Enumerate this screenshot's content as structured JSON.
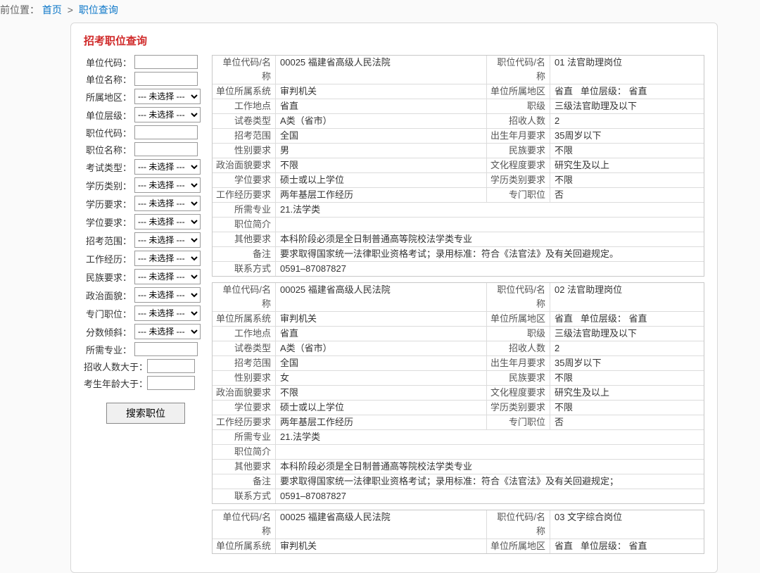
{
  "breadcrumb": {
    "prefix": "前位置：",
    "home": "首页",
    "sep": ">",
    "current": "职位查询"
  },
  "panel_title": "招考职位查询",
  "filters": {
    "unit_code": "单位代码：",
    "unit_name": "单位名称：",
    "area": "所属地区：",
    "unit_level": "单位层级：",
    "job_code": "职位代码：",
    "job_name": "职位名称：",
    "exam_type": "考试类型：",
    "edu_category": "学历类别：",
    "edu_require": "学历要求：",
    "degree_require": "学位要求：",
    "recruit_scope": "招考范围：",
    "work_exp": "工作经历：",
    "ethnicity_req": "民族要求：",
    "politics": "政治面貌：",
    "special_post": "专门职位：",
    "score_pref": "分数倾斜：",
    "required_major": "所需专业：",
    "recruit_gt": "招收人数大于：",
    "age_gt": "考生年龄大于：",
    "placeholder": "--- 未选择 ---",
    "search_btn": "搜索职位"
  },
  "labels": {
    "unit_code_name": "单位代码/名称",
    "job_code_name": "职位代码/名称",
    "unit_system": "单位所属系统",
    "unit_area": "单位所属地区",
    "unit_level": "单位层级：",
    "work_location": "工作地点",
    "job_rank": "职级",
    "paper_type": "试卷类型",
    "recruit_count": "招收人数",
    "recruit_scope": "招考范围",
    "birth_year_req": "出生年月要求",
    "gender_req": "性别要求",
    "ethnicity_req": "民族要求",
    "politics_req": "政治面貌要求",
    "culture_req": "文化程度要求",
    "degree_req": "学位要求",
    "edu_cat_req": "学历类别要求",
    "work_exp_req": "工作经历要求",
    "special_post": "专门职位",
    "required_major": "所需专业",
    "job_desc": "职位简介",
    "other_req": "其他要求",
    "remark": "备注",
    "contact": "联系方式"
  },
  "records": [
    {
      "unit": "00025 福建省高级人民法院",
      "job": "01 法官助理岗位",
      "system": "审判机关",
      "area": "省直",
      "level": "省直",
      "location": "省直",
      "rank": "三级法官助理及以下",
      "paper": "A类（省市）",
      "count": "2",
      "scope": "全国",
      "birth": "35周岁以下",
      "gender": "男",
      "ethnicity": "不限",
      "politics": "不限",
      "culture": "研究生及以上",
      "degree": "硕士或以上学位",
      "edu_cat": "不限",
      "work_exp": "两年基层工作经历",
      "special": "否",
      "major": "21.法学类",
      "desc": "",
      "other": "本科阶段必须是全日制普通高等院校法学类专业",
      "remark": "要求取得国家统一法律职业资格考试；录用标准：符合《法官法》及有关回避规定。",
      "contact": "0591–87087827"
    },
    {
      "unit": "00025 福建省高级人民法院",
      "job": "02 法官助理岗位",
      "system": "审判机关",
      "area": "省直",
      "level": "省直",
      "location": "省直",
      "rank": "三级法官助理及以下",
      "paper": "A类（省市）",
      "count": "2",
      "scope": "全国",
      "birth": "35周岁以下",
      "gender": "女",
      "ethnicity": "不限",
      "politics": "不限",
      "culture": "研究生及以上",
      "degree": "硕士或以上学位",
      "edu_cat": "不限",
      "work_exp": "两年基层工作经历",
      "special": "否",
      "major": "21.法学类",
      "desc": "",
      "other": "本科阶段必须是全日制普通高等院校法学类专业",
      "remark": "要求取得国家统一法律职业资格考试；录用标准：符合《法官法》及有关回避规定；",
      "contact": "0591–87087827"
    },
    {
      "unit": "00025 福建省高级人民法院",
      "job": "03 文字综合岗位",
      "system": "审判机关",
      "area": "省直",
      "level": "省直"
    }
  ]
}
